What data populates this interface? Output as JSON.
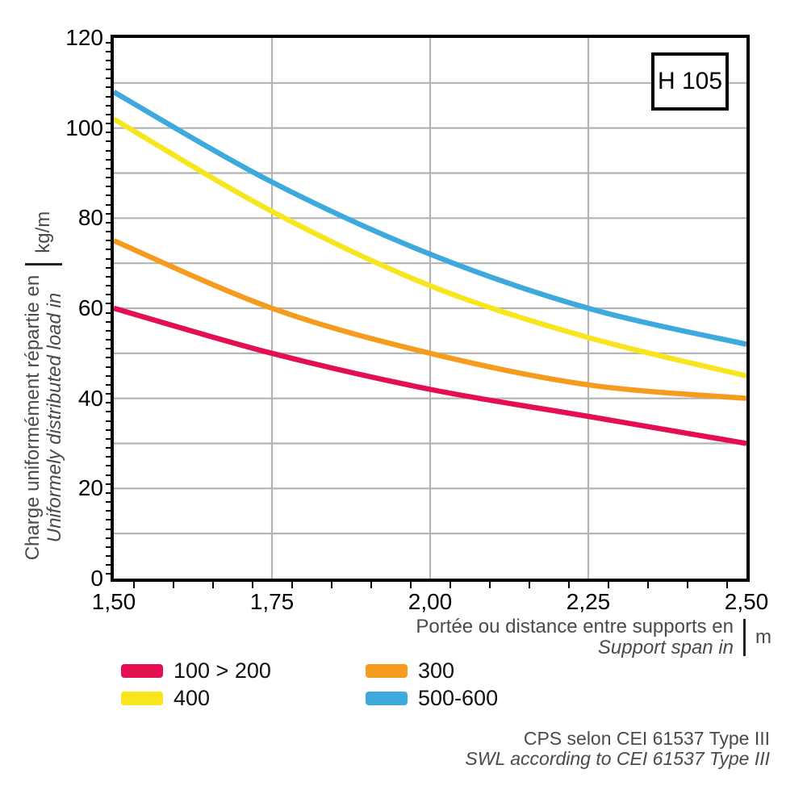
{
  "header": {
    "box_label": "H 105"
  },
  "colors": {
    "grid": "#b3b3b3",
    "axis": "#000000",
    "muted_text": "#4a4a49"
  },
  "y_axis": {
    "title_fr": "Charge uniformément répartie en",
    "title_en": "Uniformely distributed load in",
    "unit": "kg/m",
    "tick_values": [
      0,
      20,
      40,
      60,
      80,
      100,
      120
    ],
    "ticks": [
      "0",
      "20",
      "40",
      "60",
      "80",
      "100",
      "120"
    ]
  },
  "x_axis": {
    "title_fr": "Portée ou distance entre supports en",
    "title_en": "Support span in",
    "unit": "m",
    "tick_values": [
      1.5,
      1.75,
      2.0,
      2.25,
      2.5
    ],
    "ticks": [
      "1,50",
      "1,75",
      "2,00",
      "2,25",
      "2,50"
    ]
  },
  "legend": [
    {
      "label": "100 > 200",
      "color": "#e30f50"
    },
    {
      "label": "300",
      "color": "#f59b1d"
    },
    {
      "label": "400",
      "color": "#f7e61e"
    },
    {
      "label": "500-600",
      "color": "#3ea9dc"
    }
  ],
  "footer": {
    "line_fr": "CPS selon CEI 61537 Type III",
    "line_en": "SWL according to CEI 61537 Type III"
  },
  "chart_data": {
    "type": "line",
    "title_box": "H 105",
    "x": [
      1.5,
      1.75,
      2.0,
      2.25,
      2.5
    ],
    "series": [
      {
        "name": "100 > 200",
        "color": "#e30f50",
        "values": [
          60,
          50,
          42,
          36,
          30
        ]
      },
      {
        "name": "300",
        "color": "#f59b1d",
        "values": [
          75,
          60,
          50,
          43,
          40
        ]
      },
      {
        "name": "400",
        "color": "#f7e61e",
        "values": [
          102,
          81.5,
          65,
          53.5,
          45
        ]
      },
      {
        "name": "500-600",
        "color": "#3ea9dc",
        "values": [
          108,
          88,
          72,
          60,
          52
        ]
      }
    ],
    "xlabel_fr": "Portée ou distance entre supports en",
    "xlabel_en": "Support span in",
    "x_unit": "m",
    "ylabel_fr": "Charge uniformément répartie en",
    "ylabel_en": "Uniformely distributed load in",
    "y_unit": "kg/m",
    "xlim": [
      1.5,
      2.5
    ],
    "ylim": [
      0,
      120
    ],
    "grid": {
      "y_step": 10,
      "x_gridlines": [
        1.75,
        2.0,
        2.25
      ]
    },
    "legend_position": "bottom"
  }
}
